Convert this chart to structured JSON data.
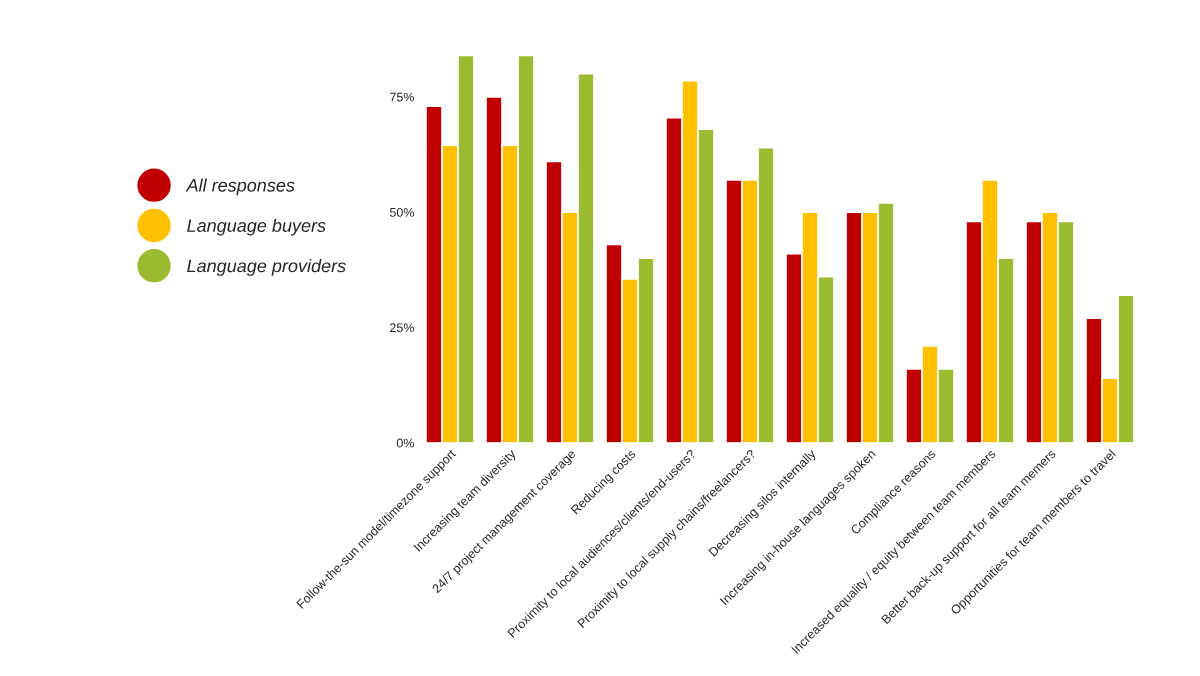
{
  "chart_data": {
    "type": "bar",
    "categories": [
      "Follow-the-sun model/timezone support",
      "Increasing team diversity",
      "24/7 project management coverage",
      "Reducing costs",
      "Proximity to local audiences/clients/end-users?",
      "Proximity to local supply chains/freelancers?",
      "Decreasing silos internally",
      "Increasing in-house languages spoken",
      "Compliance reasons",
      "Increased equality / equity between team members",
      "Better back-up support for all team memers",
      "Opportunities for team members to travel"
    ],
    "series": [
      {
        "name": "All responses",
        "color": "#c00000",
        "values": [
          73,
          75,
          61,
          43,
          70.5,
          57,
          41,
          50,
          16,
          48,
          48,
          27
        ]
      },
      {
        "name": "Language buyers",
        "color": "#ffc000",
        "values": [
          64.5,
          64.5,
          50,
          35.5,
          78.5,
          57,
          50,
          50,
          21,
          57,
          50,
          14
        ]
      },
      {
        "name": "Language providers",
        "color": "#9bbb30",
        "values": [
          84,
          84,
          80,
          40,
          68,
          64,
          36,
          52,
          16,
          40,
          48,
          32
        ]
      }
    ],
    "ylim": [
      0,
      85
    ],
    "yticks": [
      {
        "value": 0,
        "label": "0%"
      },
      {
        "value": 25,
        "label": "25%"
      },
      {
        "value": 50,
        "label": "50%"
      },
      {
        "value": 75,
        "label": "75%"
      }
    ],
    "grid": false,
    "legend": "left"
  }
}
